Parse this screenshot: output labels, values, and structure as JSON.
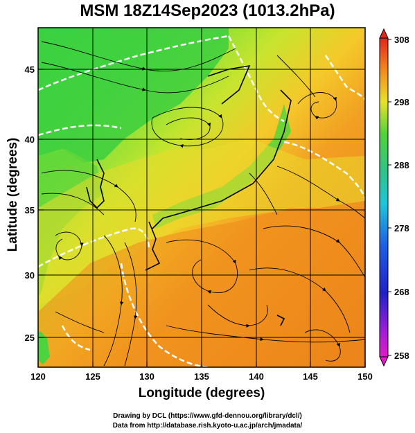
{
  "title": "MSM 18Z14Sep2023 (1013.2hPa)",
  "xaxis": {
    "label": "Longitude (degrees)",
    "ticks": [
      "120",
      "125",
      "130",
      "135",
      "140",
      "145",
      "150"
    ]
  },
  "yaxis": {
    "label": "Latitude  (degrees)",
    "ticks": [
      "25",
      "30",
      "35",
      "40",
      "45"
    ]
  },
  "colorbar": {
    "ticks": [
      "308",
      "298",
      "288",
      "278",
      "268",
      "258"
    ]
  },
  "credits": {
    "line1": "Drawing by DCL (https://www.gfd-dennou.org/library/dcl/)",
    "line2": "Data from http://database.rish.kyoto-u.ac.jp/arch/jmadata/"
  },
  "chart_data": {
    "type": "heatmap",
    "variable": "temperature with streamlines",
    "units": "K",
    "x_range": [
      120,
      150
    ],
    "y_range": [
      22.5,
      47.6
    ],
    "color_range": [
      258,
      308
    ],
    "colors": {
      "green": "#3ddc3d",
      "yellow_green": "#b6e62c",
      "orange": "#f0951c",
      "deep_orange": "#eb7b15",
      "land_green": "#4fd23f",
      "isotherm": "#ffffff"
    }
  }
}
